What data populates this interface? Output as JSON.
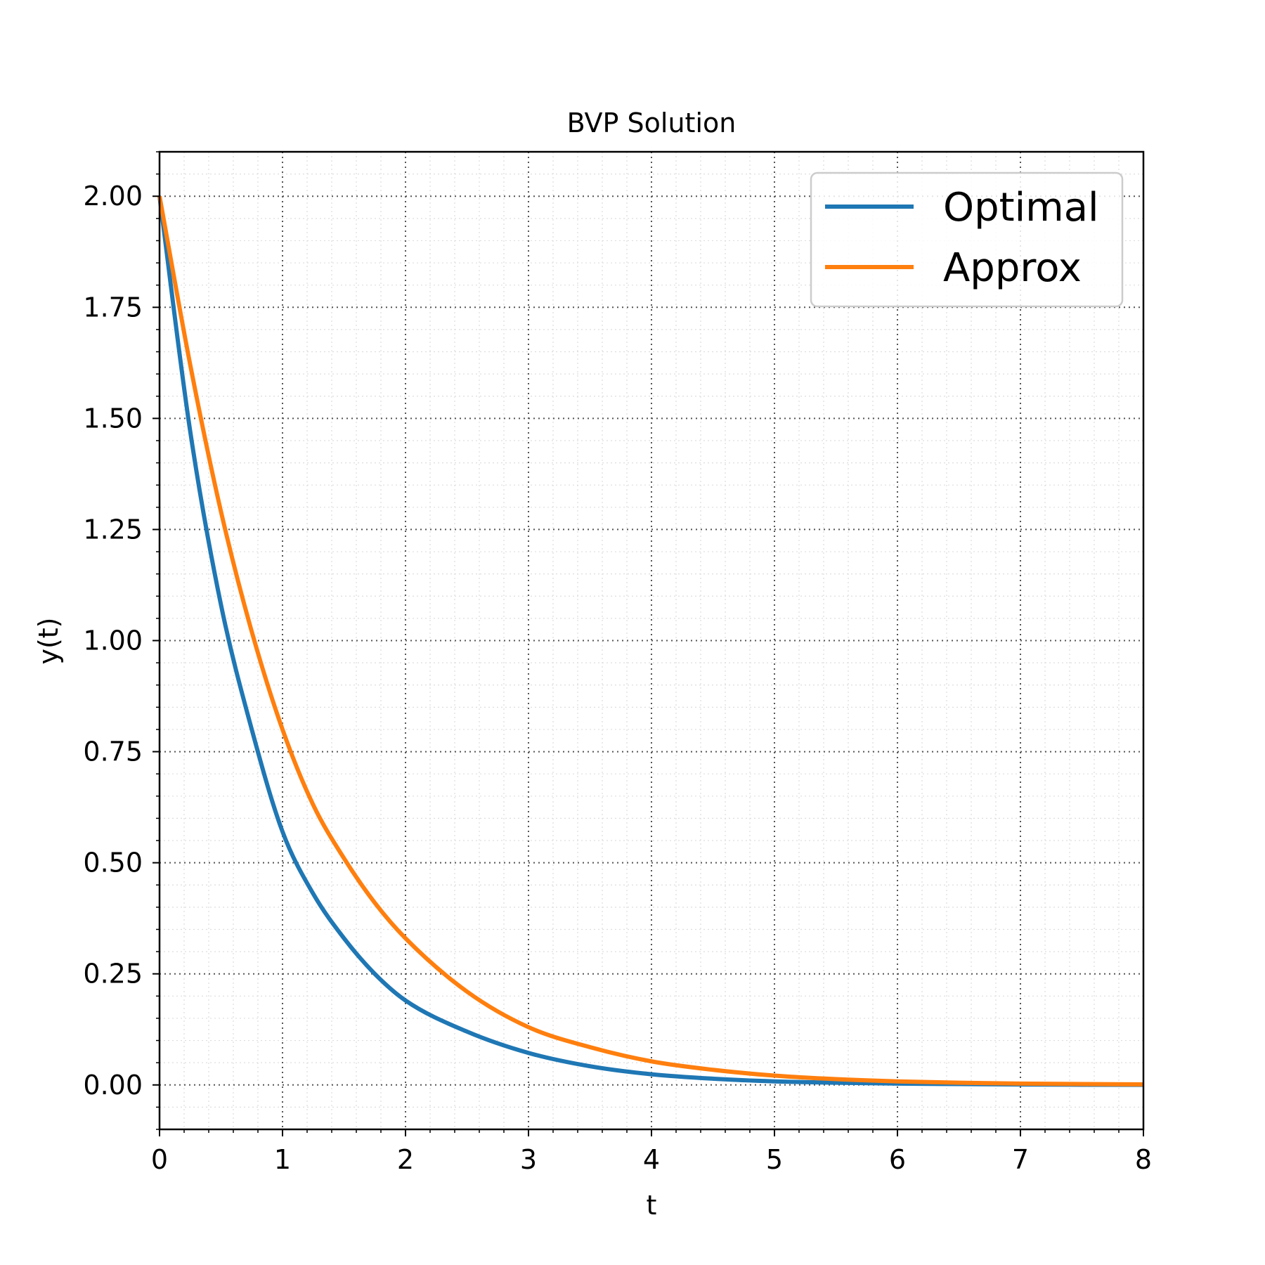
{
  "chart_data": {
    "type": "line",
    "title": "BVP Solution",
    "xlabel": "t",
    "ylabel": "y(t)",
    "xlim": [
      0,
      8
    ],
    "ylim": [
      -0.1,
      2.1
    ],
    "xticks": [
      "0",
      "1",
      "2",
      "3",
      "4",
      "5",
      "6",
      "7",
      "8"
    ],
    "yticks": [
      "0.00",
      "0.25",
      "0.50",
      "0.75",
      "1.00",
      "1.25",
      "1.50",
      "1.75",
      "2.00"
    ],
    "grid": true,
    "minor_grid": true,
    "legend_position": "top-right",
    "series": [
      {
        "name": "Optimal",
        "color": "#1f77b4",
        "x": [
          0,
          0.25,
          0.5,
          0.75,
          1,
          1.25,
          1.5,
          1.75,
          2,
          2.5,
          3,
          3.5,
          4,
          4.5,
          5,
          5.5,
          6,
          6.5,
          7,
          7.5,
          8
        ],
        "y": [
          2.0,
          1.47,
          1.08,
          0.8,
          0.57,
          0.43,
          0.33,
          0.25,
          0.19,
          0.12,
          0.072,
          0.042,
          0.024,
          0.014,
          0.008,
          0.005,
          0.003,
          0.002,
          0.001,
          0.0005,
          0.0003
        ]
      },
      {
        "name": "Approx",
        "color": "#ff7f0e",
        "x": [
          0,
          0.25,
          0.5,
          0.75,
          1,
          1.25,
          1.5,
          1.75,
          2,
          2.5,
          3,
          3.5,
          4,
          4.5,
          5,
          5.5,
          6,
          6.5,
          7,
          7.5,
          8
        ],
        "y": [
          2.0,
          1.62,
          1.29,
          1.02,
          0.8,
          0.63,
          0.51,
          0.41,
          0.33,
          0.21,
          0.13,
          0.085,
          0.053,
          0.034,
          0.021,
          0.013,
          0.008,
          0.005,
          0.003,
          0.002,
          0.0012
        ]
      }
    ]
  }
}
